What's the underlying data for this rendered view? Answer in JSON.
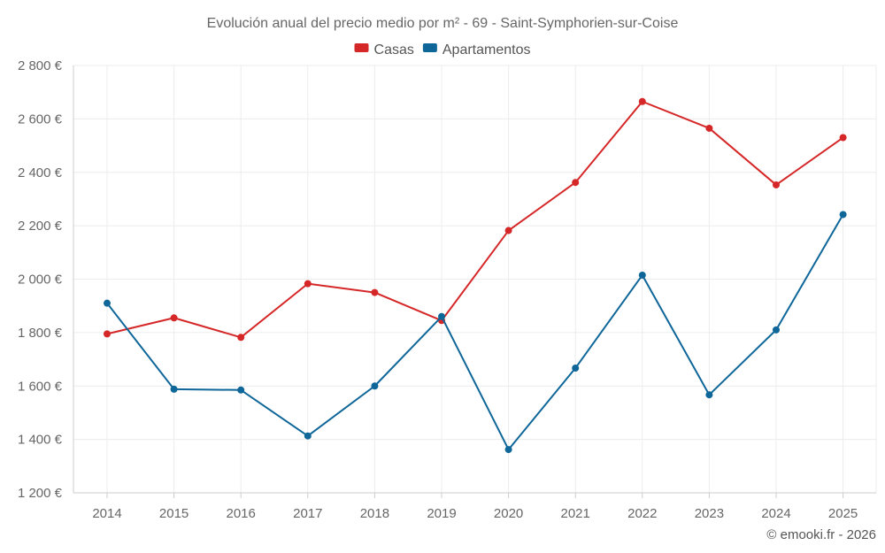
{
  "chart_data": {
    "type": "line",
    "title": "Evolución anual del precio medio por m² - 69 - Saint-Symphorien-sur-Coise",
    "categories": [
      "2014",
      "2015",
      "2016",
      "2017",
      "2018",
      "2019",
      "2020",
      "2021",
      "2022",
      "2023",
      "2024",
      "2025"
    ],
    "series": [
      {
        "name": "Casas",
        "color": "#d62728",
        "values": [
          1795,
          1855,
          1782,
          1983,
          1950,
          1845,
          2182,
          2362,
          2665,
          2565,
          2353,
          2530
        ]
      },
      {
        "name": "Apartamentos",
        "color": "#0e6699",
        "values": [
          1910,
          1588,
          1585,
          1413,
          1600,
          1860,
          1362,
          1667,
          2015,
          1567,
          1810,
          2242
        ]
      }
    ],
    "yticks": [
      "1 200 €",
      "1 400 €",
      "1 600 €",
      "1 800 €",
      "2 000 €",
      "2 200 €",
      "2 400 €",
      "2 600 €",
      "2 800 €"
    ],
    "ylim": [
      1200,
      2800
    ],
    "xlabel": "",
    "ylabel": "",
    "legend_position": "top-center"
  },
  "credit": "© emooki.fr - 2026"
}
